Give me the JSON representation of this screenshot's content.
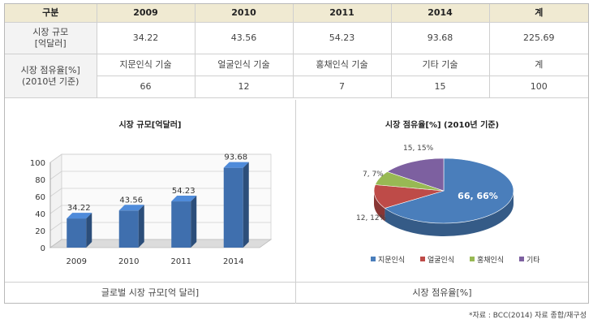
{
  "table": {
    "header": [
      "구분",
      "2009",
      "2010",
      "2011",
      "2014",
      "계"
    ],
    "market_size": {
      "label_line1": "시장 규모",
      "label_line2": "[억달러]",
      "values": [
        "34.22",
        "43.56",
        "54.23",
        "93.68",
        "225.69"
      ]
    },
    "share": {
      "label_line1": "시장 점유율[%]",
      "label_line2": "(2010년 기준)",
      "tech_names": [
        "지문인식 기술",
        "얼굴인식 기술",
        "홍채인식 기술",
        "기타 기술",
        "계"
      ],
      "tech_values": [
        "66",
        "12",
        "7",
        "15",
        "100"
      ]
    }
  },
  "captions": {
    "left": "글로벌 시장 규모[억 달러]",
    "right": "시장 점유율[%]"
  },
  "source": "*자료 : BCC(2014) 자료 종합/재구성",
  "chart_data": [
    {
      "type": "bar",
      "title": "시장 규모[억달러]",
      "categories": [
        "2009",
        "2010",
        "2011",
        "2014"
      ],
      "values": [
        34.22,
        43.56,
        54.23,
        93.68
      ],
      "data_labels": [
        "34.22",
        "43.56",
        "54.23",
        "93.68"
      ],
      "ylim": [
        0,
        100
      ],
      "yticks": [
        0,
        20,
        40,
        60,
        80,
        100
      ],
      "ytick_labels": [
        "0",
        "20",
        "40",
        "60",
        "80",
        "100"
      ],
      "bar_color": "#3f6fae",
      "grid": true,
      "style": "3d"
    },
    {
      "type": "pie",
      "title": "시장 점유율[%] (2010년 기준)",
      "labels": [
        "지문인식",
        "얼굴인식",
        "홍채인식",
        "기타"
      ],
      "values": [
        66,
        12,
        7,
        15
      ],
      "slice_labels": [
        "66, 66%",
        "12, 12%",
        "7, 7%",
        "15, 15%"
      ],
      "colors": [
        "#4a7ebb",
        "#be4b48",
        "#98b954",
        "#7d60a0"
      ],
      "legend": "bottom",
      "style": "3d"
    }
  ]
}
